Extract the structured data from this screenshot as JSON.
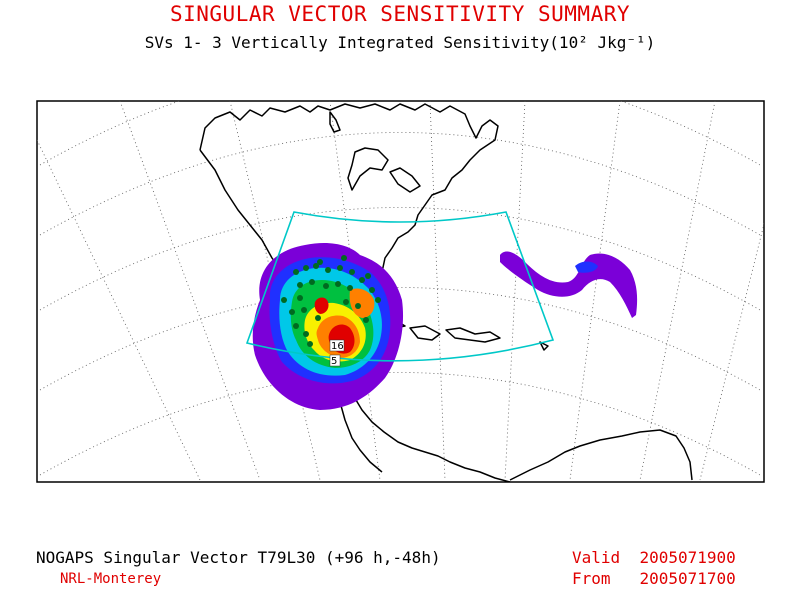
{
  "header": {
    "title": "SINGULAR VECTOR SENSITIVITY SUMMARY",
    "subtitle": "SVs 1- 3  Vertically Integrated Sensitivity(10² Jkg⁻¹)"
  },
  "map": {
    "contour_labels": [
      "16",
      "5"
    ],
    "colors": {
      "violet": "#7b00d8",
      "blue": "#2030ff",
      "cyan": "#00c8e8",
      "green": "#00c040",
      "yellow": "#f8f000",
      "orange": "#ff8000",
      "red": "#e00000",
      "box": "#00c8c8"
    }
  },
  "footer": {
    "model": "NOGAPS Singular Vector T79L30 (+96 h,-48h)",
    "org": "NRL-Monterey",
    "valid_label": "Valid",
    "valid_value": "2005071900",
    "from_label": "From",
    "from_value": "2005071700"
  }
}
